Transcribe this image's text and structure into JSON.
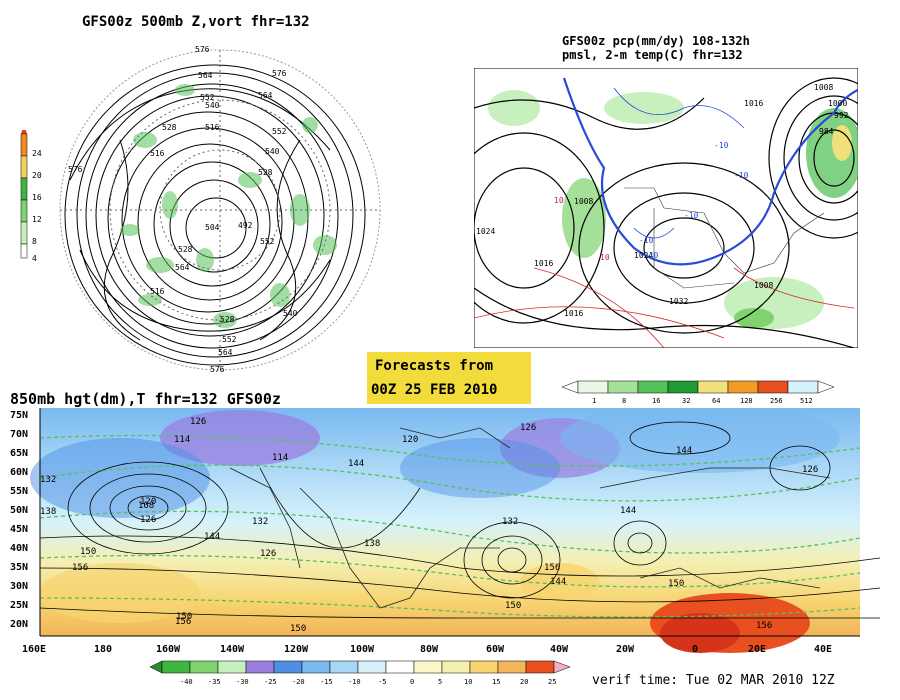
{
  "panel_500mb": {
    "title": "GFS00z  500mb  Z,vort    fhr=132",
    "colorbar_ticks": [
      "24",
      "20",
      "16",
      "12",
      "8",
      "4"
    ],
    "contour_labels": [
      "576",
      "564",
      "552",
      "540",
      "528",
      "516",
      "576",
      "564",
      "552",
      "540",
      "528",
      "516",
      "504",
      "492",
      "552",
      "540",
      "528",
      "564",
      "576",
      "528",
      "552",
      "564",
      "576",
      "516"
    ]
  },
  "panel_pmsl": {
    "title_line1": "GFS00z pcp(mm/dy) 108-132h",
    "title_line2": "pmsl, 2-m temp(C)  fhr=132",
    "isobar_labels": [
      "1008",
      "1000",
      "992",
      "984",
      "1016",
      "1024",
      "1016",
      "1008",
      "1024",
      "1032",
      "1016",
      "1008"
    ],
    "temp_labels": [
      "-10",
      "-10",
      "-10",
      "-10",
      "-10",
      "10",
      "10"
    ],
    "colorbar_ticks": [
      "1",
      "8",
      "16",
      "32",
      "64",
      "128",
      "256",
      "512"
    ]
  },
  "forecast_box": {
    "line1": "Forecasts from",
    "line2": "00Z 25 FEB 2010"
  },
  "panel_850mb": {
    "title": "850mb hgt(dm),T   fhr=132 GFS00z",
    "lat_labels": [
      "75N",
      "70N",
      "65N",
      "60N",
      "55N",
      "50N",
      "45N",
      "40N",
      "35N",
      "30N",
      "25N",
      "20N"
    ],
    "lon_labels": [
      "160E",
      "180",
      "160W",
      "140W",
      "120W",
      "100W",
      "80W",
      "60W",
      "40W",
      "20W",
      "0",
      "20E",
      "40E"
    ],
    "height_labels": [
      "114",
      "126",
      "138",
      "126",
      "120",
      "132",
      "114",
      "120",
      "126",
      "144",
      "132",
      "144",
      "126",
      "138",
      "150",
      "156",
      "150",
      "144",
      "156",
      "150",
      "150",
      "156",
      "144",
      "144",
      "132",
      "150",
      "156",
      "108",
      "126"
    ],
    "colorbar_ticks": [
      "-40",
      "-35",
      "-30",
      "-25",
      "-20",
      "-15",
      "-10",
      "-5",
      "0",
      "5",
      "10",
      "15",
      "20",
      "25"
    ],
    "verif_time": "verif time: Tue 02 MAR 2010 12Z"
  },
  "colors": {
    "forecast_box_bg": "#f2dc3c",
    "green": "#55c25a",
    "blue_contour": "#2a4bd6",
    "red_contour": "#d62a2a",
    "purple": "#9a7fe0"
  }
}
